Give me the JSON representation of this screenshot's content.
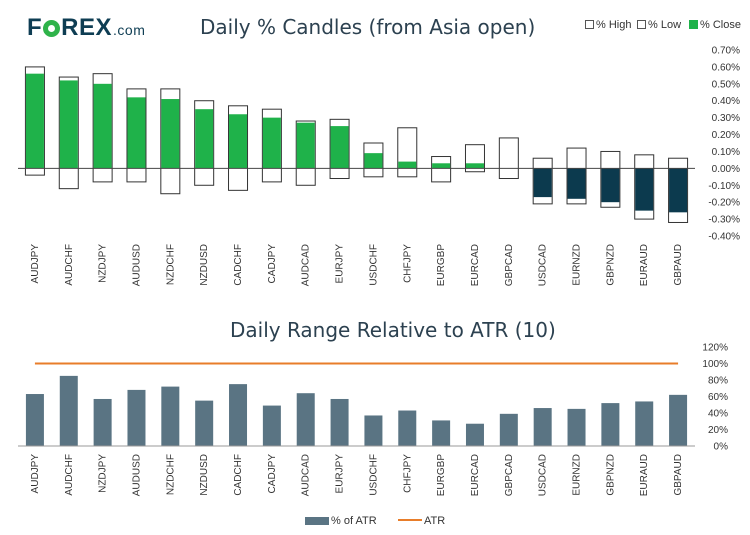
{
  "brand": {
    "name_a": "F",
    "name_b": "REX",
    "suffix": ".com"
  },
  "legend_top": {
    "high": "% High",
    "low": "% Low",
    "close": "% Close"
  },
  "legend_bottom": {
    "atr_pct": "% of ATR",
    "atr": "ATR"
  },
  "colors": {
    "up": "#1fb24a",
    "down": "#0c3a4e",
    "atr_bar": "#5a7483",
    "atr_line": "#e87d2a"
  },
  "chart_data": [
    {
      "type": "candlestick",
      "title": "Daily % Candles (from Asia open)",
      "series_names": [
        "% High",
        "% Low",
        "% Close"
      ],
      "ylim": [
        -0.4,
        0.7
      ],
      "yticks": [
        "0.70%",
        "0.60%",
        "0.50%",
        "0.40%",
        "0.30%",
        "0.20%",
        "0.10%",
        "0.00%",
        "-0.10%",
        "-0.20%",
        "-0.30%",
        "-0.40%"
      ],
      "categories": [
        "AUDJPY",
        "AUDCHF",
        "NZDJPY",
        "AUDUSD",
        "NZDCHF",
        "NZDUSD",
        "CADCHF",
        "CADJPY",
        "AUDCAD",
        "EURJPY",
        "USDCHF",
        "CHFJPY",
        "EURGBP",
        "EURCAD",
        "GBPCAD",
        "USDCAD",
        "EURNZD",
        "GBPNZD",
        "EURAUD",
        "GBPAUD"
      ],
      "high": [
        0.6,
        0.54,
        0.56,
        0.47,
        0.47,
        0.4,
        0.37,
        0.35,
        0.28,
        0.29,
        0.15,
        0.24,
        0.07,
        0.14,
        0.18,
        0.06,
        0.12,
        0.1,
        0.08,
        0.06
      ],
      "low": [
        -0.04,
        -0.12,
        -0.08,
        -0.08,
        -0.15,
        -0.1,
        -0.13,
        -0.08,
        -0.1,
        -0.06,
        -0.05,
        -0.05,
        -0.08,
        -0.02,
        -0.06,
        -0.21,
        -0.21,
        -0.23,
        -0.3,
        -0.32
      ],
      "close": [
        0.56,
        0.52,
        0.5,
        0.42,
        0.41,
        0.35,
        0.32,
        0.3,
        0.27,
        0.25,
        0.09,
        0.04,
        0.03,
        0.03,
        0.0,
        -0.17,
        -0.18,
        -0.2,
        -0.25,
        -0.26
      ]
    },
    {
      "type": "bar",
      "title": "Daily Range Relative to ATR (10)",
      "ylim": [
        0,
        120
      ],
      "yticks": [
        "0%",
        "20%",
        "40%",
        "60%",
        "80%",
        "100%",
        "120%"
      ],
      "categories": [
        "AUDJPY",
        "AUDCHF",
        "NZDJPY",
        "AUDUSD",
        "NZDCHF",
        "NZDUSD",
        "CADCHF",
        "CADJPY",
        "AUDCAD",
        "EURJPY",
        "USDCHF",
        "CHFJPY",
        "EURGBP",
        "EURCAD",
        "GBPCAD",
        "USDCAD",
        "EURNZD",
        "GBPNZD",
        "EURAUD",
        "GBPAUD"
      ],
      "series": [
        {
          "name": "% of ATR",
          "values": [
            63,
            85,
            57,
            68,
            72,
            55,
            75,
            49,
            64,
            57,
            37,
            43,
            31,
            27,
            39,
            46,
            45,
            52,
            54,
            62
          ]
        },
        {
          "name": "ATR",
          "values": [
            100,
            100,
            100,
            100,
            100,
            100,
            100,
            100,
            100,
            100,
            100,
            100,
            100,
            100,
            100,
            100,
            100,
            100,
            100,
            100
          ]
        }
      ]
    }
  ]
}
